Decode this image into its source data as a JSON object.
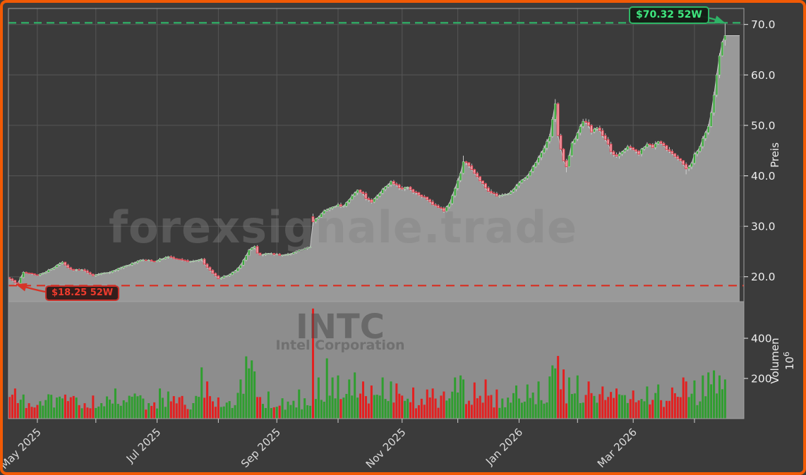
{
  "window": {
    "border_color": "#f15a05",
    "background": "#3b3b3b",
    "panel_background": "#8d8d8d"
  },
  "watermarks": {
    "site": "forexsignale.trade",
    "symbol": "INTC",
    "company": "Intel Corporation"
  },
  "annotations": {
    "high": {
      "label": "$70.32 52W",
      "value": 70.32,
      "color": "#3fe87f"
    },
    "low": {
      "label": "$18.25 52W",
      "value": 18.25,
      "color": "#ef3b2d"
    }
  },
  "chart_data": {
    "type": "candlestick",
    "symbol": "INTC",
    "company": "Intel Corporation",
    "price_axis": {
      "label": "Preis",
      "ticks": [
        20.0,
        30.0,
        40.0,
        50.0,
        60.0,
        70.0
      ],
      "tick_format": "70.0",
      "range_low": 15,
      "range_high": 73.5
    },
    "volume_axis": {
      "label": "Volumen",
      "unit": "10⁶",
      "unit_base": "10",
      "unit_exp": "6",
      "ticks": [
        200,
        400
      ],
      "range_low": 0,
      "range_high": 582
    },
    "x_axis": {
      "tick_labels": [
        "May 2025",
        "Jul 2025",
        "Sep 2025",
        "Nov 2025",
        "Jan 2026",
        "Mar 2026"
      ],
      "month_tick_days": [
        10,
        31,
        53,
        75,
        96,
        118,
        141,
        161,
        183,
        204,
        224,
        246
      ],
      "labeled_tick_indices": [
        0,
        2,
        4,
        6,
        8,
        10
      ]
    },
    "num_days": 258,
    "week52_high": 70.32,
    "week52_low": 18.25,
    "last_close": 67.8,
    "series": {
      "close_keyframes": [
        [
          0,
          19.6
        ],
        [
          2,
          18.8
        ],
        [
          3,
          18.7
        ],
        [
          5,
          20.9
        ],
        [
          8,
          20.6
        ],
        [
          10,
          20.3
        ],
        [
          13,
          20.9
        ],
        [
          17,
          22.3
        ],
        [
          19,
          22.9
        ],
        [
          21,
          21.8
        ],
        [
          23,
          21.3
        ],
        [
          26,
          21.4
        ],
        [
          30,
          20.2
        ],
        [
          32,
          20.5
        ],
        [
          35,
          20.8
        ],
        [
          38,
          21.3
        ],
        [
          42,
          22.2
        ],
        [
          45,
          22.8
        ],
        [
          47,
          23.3
        ],
        [
          50,
          23.3
        ],
        [
          52,
          23.0
        ],
        [
          54,
          23.5
        ],
        [
          57,
          24.0
        ],
        [
          59,
          23.6
        ],
        [
          62,
          23.3
        ],
        [
          64,
          23.0
        ],
        [
          67,
          23.2
        ],
        [
          69,
          23.5
        ],
        [
          70,
          22.5
        ],
        [
          72,
          21.3
        ],
        [
          74,
          20.2
        ],
        [
          75,
          19.6
        ],
        [
          77,
          20.1
        ],
        [
          79,
          20.4
        ],
        [
          81,
          21.1
        ],
        [
          83,
          22.3
        ],
        [
          85,
          24.2
        ],
        [
          86,
          25.3
        ],
        [
          88,
          26.0
        ],
        [
          89,
          24.7
        ],
        [
          90,
          24.3
        ],
        [
          93,
          24.6
        ],
        [
          95,
          24.4
        ],
        [
          98,
          24.3
        ],
        [
          100,
          24.5
        ],
        [
          102,
          24.8
        ],
        [
          104,
          25.3
        ],
        [
          106,
          25.6
        ],
        [
          108,
          25.9
        ],
        [
          109,
          30.9
        ],
        [
          111,
          31.8
        ],
        [
          112,
          32.5
        ],
        [
          114,
          33.3
        ],
        [
          116,
          33.8
        ],
        [
          118,
          34.3
        ],
        [
          120,
          34.0
        ],
        [
          122,
          35.3
        ],
        [
          124,
          36.6
        ],
        [
          125,
          37.2
        ],
        [
          127,
          36.5
        ],
        [
          128,
          35.5
        ],
        [
          130,
          34.8
        ],
        [
          132,
          36.0
        ],
        [
          134,
          37.3
        ],
        [
          136,
          38.2
        ],
        [
          137,
          38.9
        ],
        [
          139,
          38.2
        ],
        [
          141,
          37.4
        ],
        [
          143,
          37.8
        ],
        [
          145,
          36.8
        ],
        [
          147,
          36.2
        ],
        [
          149,
          35.8
        ],
        [
          150,
          35.3
        ],
        [
          152,
          34.3
        ],
        [
          155,
          33.6
        ],
        [
          156,
          33.0
        ],
        [
          158,
          34.5
        ],
        [
          160,
          37.5
        ],
        [
          162,
          40.5
        ],
        [
          163,
          42.8
        ],
        [
          165,
          42.0
        ],
        [
          167,
          40.5
        ],
        [
          169,
          39.0
        ],
        [
          171,
          37.6
        ],
        [
          173,
          36.6
        ],
        [
          175,
          36.0
        ],
        [
          178,
          36.3
        ],
        [
          180,
          36.8
        ],
        [
          182,
          38.0
        ],
        [
          184,
          39.2
        ],
        [
          186,
          40.0
        ],
        [
          188,
          41.8
        ],
        [
          190,
          43.6
        ],
        [
          192,
          45.5
        ],
        [
          194,
          47.8
        ],
        [
          195,
          51.2
        ],
        [
          196,
          54.3
        ],
        [
          197,
          48.0
        ],
        [
          199,
          43.0
        ],
        [
          200,
          41.8
        ],
        [
          201,
          44.0
        ],
        [
          202,
          46.5
        ],
        [
          204,
          48.5
        ],
        [
          206,
          50.8
        ],
        [
          208,
          50.0
        ],
        [
          209,
          48.7
        ],
        [
          211,
          49.5
        ],
        [
          213,
          48.0
        ],
        [
          215,
          46.3
        ],
        [
          216,
          44.8
        ],
        [
          218,
          43.9
        ],
        [
          220,
          44.8
        ],
        [
          222,
          45.8
        ],
        [
          224,
          45.2
        ],
        [
          226,
          44.3
        ],
        [
          227,
          45.3
        ],
        [
          229,
          46.3
        ],
        [
          231,
          45.6
        ],
        [
          233,
          46.8
        ],
        [
          235,
          46.0
        ],
        [
          236,
          45.2
        ],
        [
          238,
          44.4
        ],
        [
          240,
          43.4
        ],
        [
          242,
          42.3
        ],
        [
          243,
          41.4
        ],
        [
          245,
          42.5
        ],
        [
          246,
          44.3
        ],
        [
          248,
          45.8
        ],
        [
          249,
          47.4
        ],
        [
          251,
          49.8
        ],
        [
          252,
          52.5
        ],
        [
          253,
          56.0
        ],
        [
          254,
          60.0
        ],
        [
          255,
          63.8
        ],
        [
          256,
          66.5
        ],
        [
          257,
          67.8
        ]
      ],
      "special_candles": {
        "2": {
          "low": 18.25
        },
        "109": {
          "open": 31.9,
          "close": 30.9,
          "high": 32.5,
          "low": 30.1
        },
        "163": {
          "high": 44.0
        },
        "196": {
          "high": 55.2
        },
        "200": {
          "low": 40.7
        },
        "243": {
          "low": 40.3
        },
        "257": {
          "open": 66.9,
          "close": 67.8,
          "high": 70.32,
          "low": 65.8
        }
      },
      "volume_spikes": [
        [
          2,
          150
        ],
        [
          5,
          120
        ],
        [
          17,
          105
        ],
        [
          30,
          115
        ],
        [
          38,
          150
        ],
        [
          45,
          125
        ],
        [
          54,
          150
        ],
        [
          57,
          135
        ],
        [
          69,
          255
        ],
        [
          71,
          185
        ],
        [
          83,
          195
        ],
        [
          85,
          310
        ],
        [
          86,
          250
        ],
        [
          87,
          290
        ],
        [
          88,
          235
        ],
        [
          93,
          135
        ],
        [
          104,
          145
        ],
        [
          109,
          548
        ],
        [
          111,
          205
        ],
        [
          114,
          300
        ],
        [
          116,
          205
        ],
        [
          118,
          215
        ],
        [
          122,
          195
        ],
        [
          124,
          230
        ],
        [
          127,
          185
        ],
        [
          130,
          165
        ],
        [
          134,
          205
        ],
        [
          137,
          185
        ],
        [
          139,
          175
        ],
        [
          145,
          155
        ],
        [
          150,
          145
        ],
        [
          152,
          150
        ],
        [
          156,
          135
        ],
        [
          160,
          205
        ],
        [
          162,
          215
        ],
        [
          163,
          195
        ],
        [
          167,
          180
        ],
        [
          171,
          195
        ],
        [
          175,
          145
        ],
        [
          182,
          165
        ],
        [
          186,
          170
        ],
        [
          190,
          185
        ],
        [
          194,
          210
        ],
        [
          195,
          265
        ],
        [
          196,
          250
        ],
        [
          197,
          312
        ],
        [
          199,
          245
        ],
        [
          201,
          205
        ],
        [
          204,
          215
        ],
        [
          208,
          185
        ],
        [
          213,
          160
        ],
        [
          218,
          150
        ],
        [
          224,
          140
        ],
        [
          229,
          160
        ],
        [
          233,
          170
        ],
        [
          238,
          155
        ],
        [
          242,
          205
        ],
        [
          243,
          185
        ],
        [
          246,
          190
        ],
        [
          249,
          215
        ],
        [
          251,
          230
        ],
        [
          253,
          240
        ],
        [
          255,
          215
        ],
        [
          257,
          195
        ]
      ]
    },
    "colors": {
      "up": "#3fa93f",
      "down_fill": "#f2a3ae",
      "down_edge": "#dd3f4c",
      "wick": "#d4d4d4",
      "vol_up": "#2f9e2f",
      "vol_down": "#e32020",
      "area_fill": "#999999",
      "close_line": "#c7c7c7",
      "grid": "#565656",
      "spine": "#a2a2a2",
      "tick_text": "#ededed",
      "high_line": "#2fb367",
      "low_line": "#d63427"
    },
    "grid": true,
    "legend": false
  }
}
